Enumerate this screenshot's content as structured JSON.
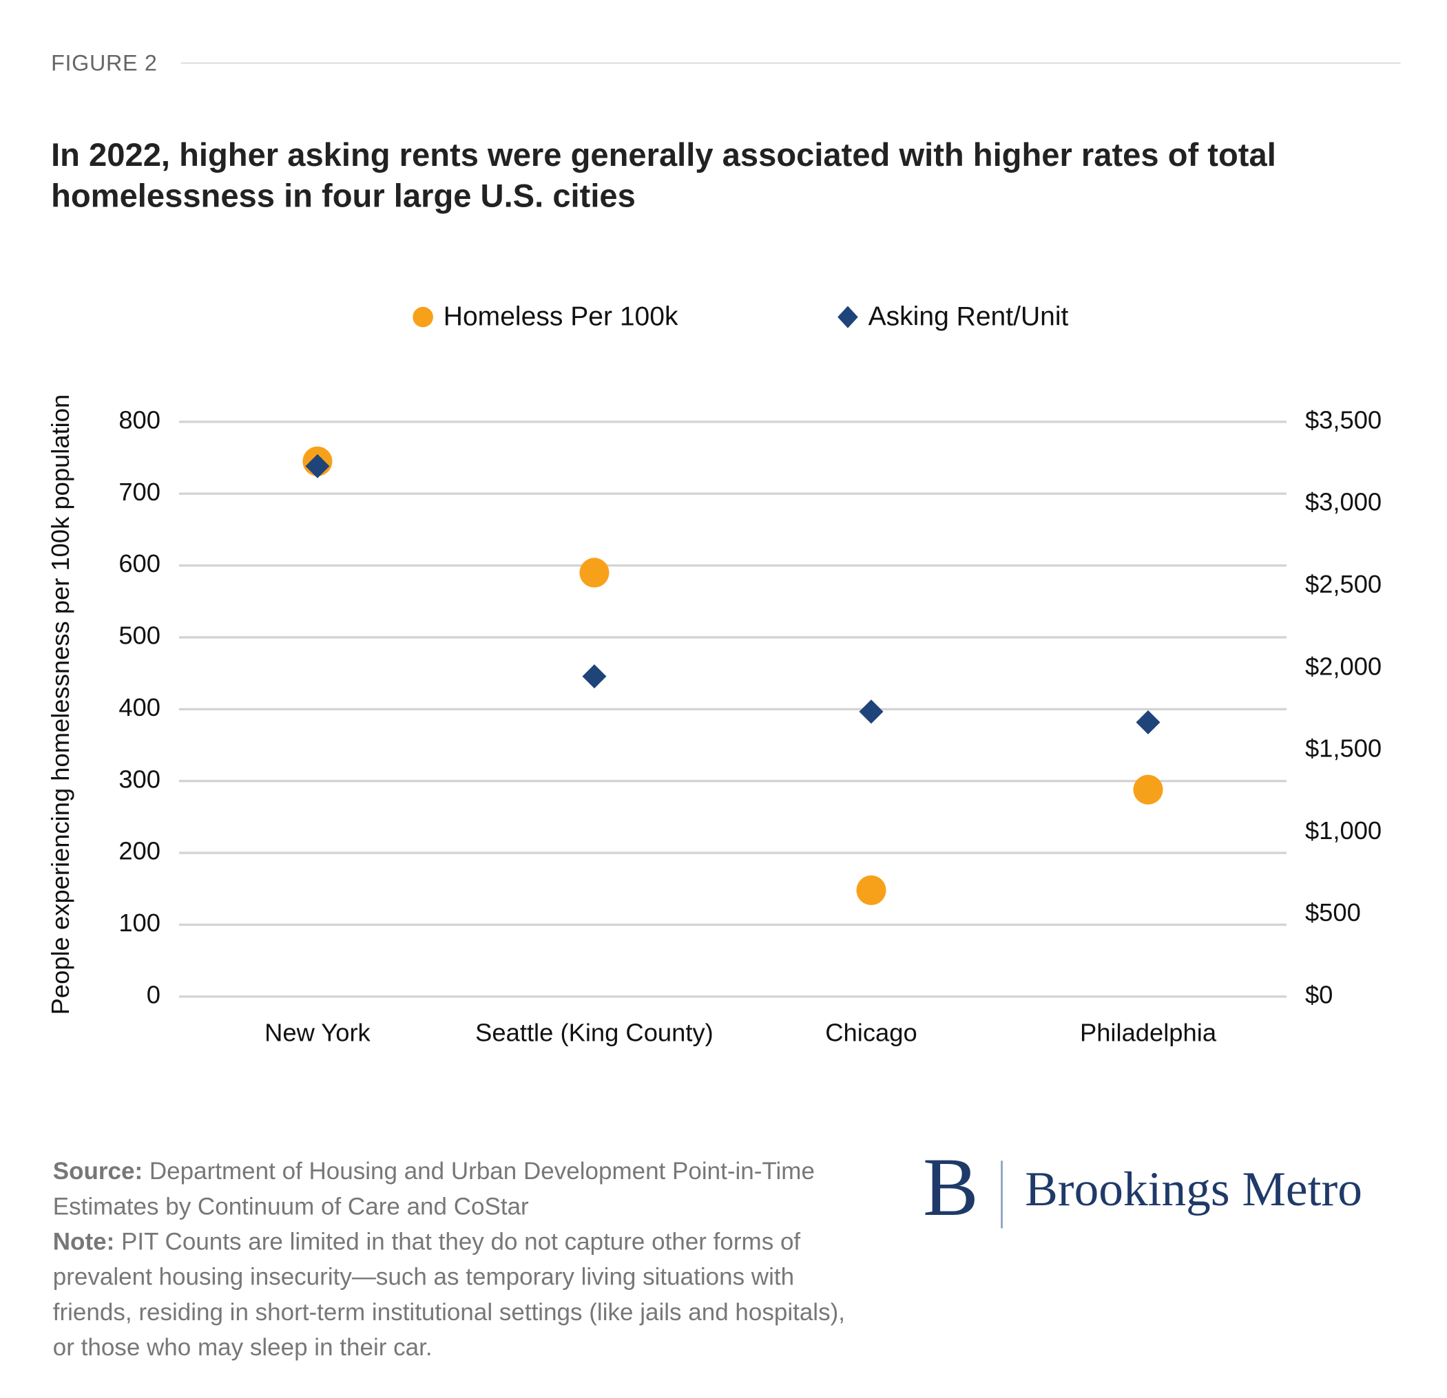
{
  "figure_label": "FIGURE 2",
  "chart_data": {
    "type": "scatter",
    "title": "In 2022, higher asking rents were generally associated with higher rates of total homelessness in four large U.S. cities",
    "y_label": "People experiencing homelessness per 100k population",
    "categories": [
      "New York",
      "Seattle (King County)",
      "Chicago",
      "Philadelphia"
    ],
    "series": [
      {
        "name": "Homeless Per 100k",
        "color": "#f7a11a",
        "marker": "circle",
        "values": [
          745,
          590,
          148,
          288
        ]
      },
      {
        "name": "Asking Rent/Unit",
        "color": "#1f4479",
        "marker": "diamond",
        "axis": "y2",
        "values": [
          3230,
          1950,
          1735,
          1670
        ]
      }
    ],
    "ylim": [
      0,
      800
    ],
    "yticks": [
      0,
      100,
      200,
      300,
      400,
      500,
      600,
      700,
      800
    ],
    "y2lim": [
      0,
      3500
    ],
    "y2ticks": [
      {
        "value": 0,
        "label": "$0"
      },
      {
        "value": 500,
        "label": "$500"
      },
      {
        "value": 1000,
        "label": "$1,000"
      },
      {
        "value": 1500,
        "label": "$1,500"
      },
      {
        "value": 2000,
        "label": "$2,000"
      },
      {
        "value": 2500,
        "label": "$2,500"
      },
      {
        "value": 3000,
        "label": "$3,000"
      },
      {
        "value": 3500,
        "label": "$3,500"
      }
    ],
    "grid": true,
    "legend": "top"
  },
  "footnote": {
    "source_label": "Source:",
    "source": "Department of Housing and Urban Development Point-in-Time Estimates by Continuum of Care and CoStar",
    "note_label": "Note:",
    "note": "PIT Counts are limited in that they do not capture other forms of prevalent housing insecurity—such as temporary living situations with friends, residing in short-term institutional settings (like jails and hospitals), or those who may sleep in their car."
  },
  "logo": {
    "mark": "B",
    "name": "Brookings Metro"
  }
}
